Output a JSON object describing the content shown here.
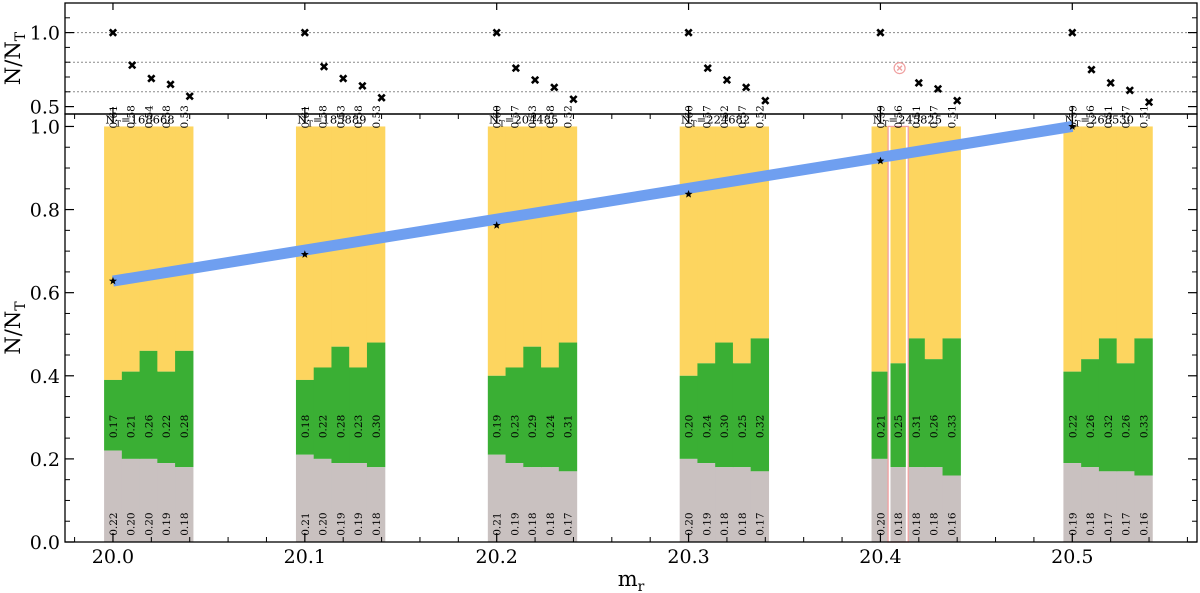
{
  "chart_data": [
    {
      "type": "scatter",
      "panel": "top",
      "ylabel": "N/N_T",
      "ylim": [
        0.45,
        1.2
      ],
      "yticks": [
        "0.5",
        "1.0"
      ],
      "grid": "horizontal dotted lines at 0.6, 0.8, 1.0",
      "marker": "x",
      "series": [
        {
          "group": "20.0",
          "x": [
            20.0,
            20.01,
            20.02,
            20.03,
            20.04
          ],
          "y": [
            1.0,
            0.78,
            0.69,
            0.65,
            0.57
          ]
        },
        {
          "group": "20.1",
          "x": [
            20.1,
            20.11,
            20.12,
            20.13,
            20.14
          ],
          "y": [
            1.0,
            0.77,
            0.69,
            0.64,
            0.56
          ]
        },
        {
          "group": "20.2",
          "x": [
            20.2,
            20.21,
            20.22,
            20.23,
            20.24
          ],
          "y": [
            1.0,
            0.76,
            0.68,
            0.63,
            0.55
          ]
        },
        {
          "group": "20.3",
          "x": [
            20.3,
            20.31,
            20.32,
            20.33,
            20.34
          ],
          "y": [
            1.0,
            0.76,
            0.68,
            0.63,
            0.54
          ]
        },
        {
          "group": "20.4",
          "x": [
            20.4,
            20.42,
            20.43,
            20.44
          ],
          "y": [
            1.0,
            0.66,
            0.62,
            0.54
          ]
        },
        {
          "group": "20.5",
          "x": [
            20.5,
            20.51,
            20.52,
            20.53,
            20.54
          ],
          "y": [
            1.0,
            0.75,
            0.66,
            0.61,
            0.53
          ]
        }
      ],
      "highlight": {
        "x": 20.41,
        "y": 0.76,
        "color": "#f0a0a0"
      }
    },
    {
      "type": "bar",
      "panel": "bottom",
      "stacked": true,
      "xlabel": "m_r",
      "ylabel": "N/N_T",
      "xlim": [
        19.975,
        20.565
      ],
      "ylim": [
        0.0,
        1.03
      ],
      "xticks": [
        "20.0",
        "20.1",
        "20.2",
        "20.3",
        "20.4",
        "20.5"
      ],
      "yticks": [
        "0.0",
        "0.2",
        "0.4",
        "0.6",
        "0.8",
        "1.0"
      ],
      "colors": {
        "gray": "#c9c1c0",
        "green": "#3aaf34",
        "yellow": "#fdd55f",
        "trend": "#6f9ff0",
        "highlight": "#f2a0a0"
      },
      "groups": [
        {
          "x": 20.0,
          "nt": "168668",
          "nt_prefix": "N",
          "nt_sub": "T",
          "nt_suffix": "=168668",
          "gray": [
            "0.22",
            "0.20",
            "0.20",
            "0.19",
            "0.18"
          ],
          "green": [
            "0.17",
            "0.21",
            "0.26",
            "0.22",
            "0.28"
          ],
          "yellow": [
            "0.61",
            "0.58",
            "0.54",
            "0.58",
            "0.53"
          ]
        },
        {
          "x": 20.1,
          "nt": "185889",
          "nt_prefix": "N",
          "nt_sub": "T",
          "nt_suffix": "=185889",
          "gray": [
            "0.21",
            "0.20",
            "0.19",
            "0.19",
            "0.18"
          ],
          "green": [
            "0.18",
            "0.22",
            "0.28",
            "0.23",
            "0.30"
          ],
          "yellow": [
            "0.61",
            "0.58",
            "0.53",
            "0.58",
            "0.53"
          ]
        },
        {
          "x": 20.2,
          "nt": "204485",
          "nt_prefix": "N",
          "nt_sub": "T",
          "nt_suffix": "=204485",
          "gray": [
            "0.21",
            "0.19",
            "0.18",
            "0.18",
            "0.17"
          ],
          "green": [
            "0.19",
            "0.23",
            "0.29",
            "0.24",
            "0.31"
          ],
          "yellow": [
            "0.60",
            "0.57",
            "0.53",
            "0.58",
            "0.52"
          ]
        },
        {
          "x": 20.3,
          "nt": "224682",
          "nt_prefix": "N",
          "nt_sub": "T",
          "nt_suffix": "=224682",
          "gray": [
            "0.20",
            "0.19",
            "0.18",
            "0.18",
            "0.17"
          ],
          "green": [
            "0.20",
            "0.24",
            "0.30",
            "0.25",
            "0.32"
          ],
          "yellow": [
            "0.60",
            "0.57",
            "0.52",
            "0.57",
            "0.52"
          ]
        },
        {
          "x": 20.4,
          "nt": "245825",
          "nt_prefix": "N",
          "nt_sub": "T",
          "nt_suffix": "=245825",
          "gray": [
            "0.20",
            "0.18",
            "0.18",
            "0.18",
            "0.16"
          ],
          "green": [
            "0.21",
            "0.25",
            "0.31",
            "0.26",
            "0.33"
          ],
          "yellow": [
            "0.59",
            "0.56",
            "0.51",
            "0.57",
            "0.51"
          ],
          "highlight_index": 1
        },
        {
          "x": 20.5,
          "nt": "268530",
          "nt_prefix": "N",
          "nt_sub": "T",
          "nt_suffix": "=268530",
          "gray": [
            "0.19",
            "0.18",
            "0.17",
            "0.17",
            "0.16"
          ],
          "green": [
            "0.22",
            "0.26",
            "0.32",
            "0.26",
            "0.33"
          ],
          "yellow": [
            "0.59",
            "0.56",
            "0.51",
            "0.57",
            "0.51"
          ]
        }
      ],
      "trend_points": [
        {
          "x": 20.0,
          "y": 0.628
        },
        {
          "x": 20.1,
          "y": 0.692
        },
        {
          "x": 20.2,
          "y": 0.762
        },
        {
          "x": 20.3,
          "y": 0.837
        },
        {
          "x": 20.4,
          "y": 0.917
        },
        {
          "x": 20.5,
          "y": 1.0
        }
      ]
    }
  ]
}
